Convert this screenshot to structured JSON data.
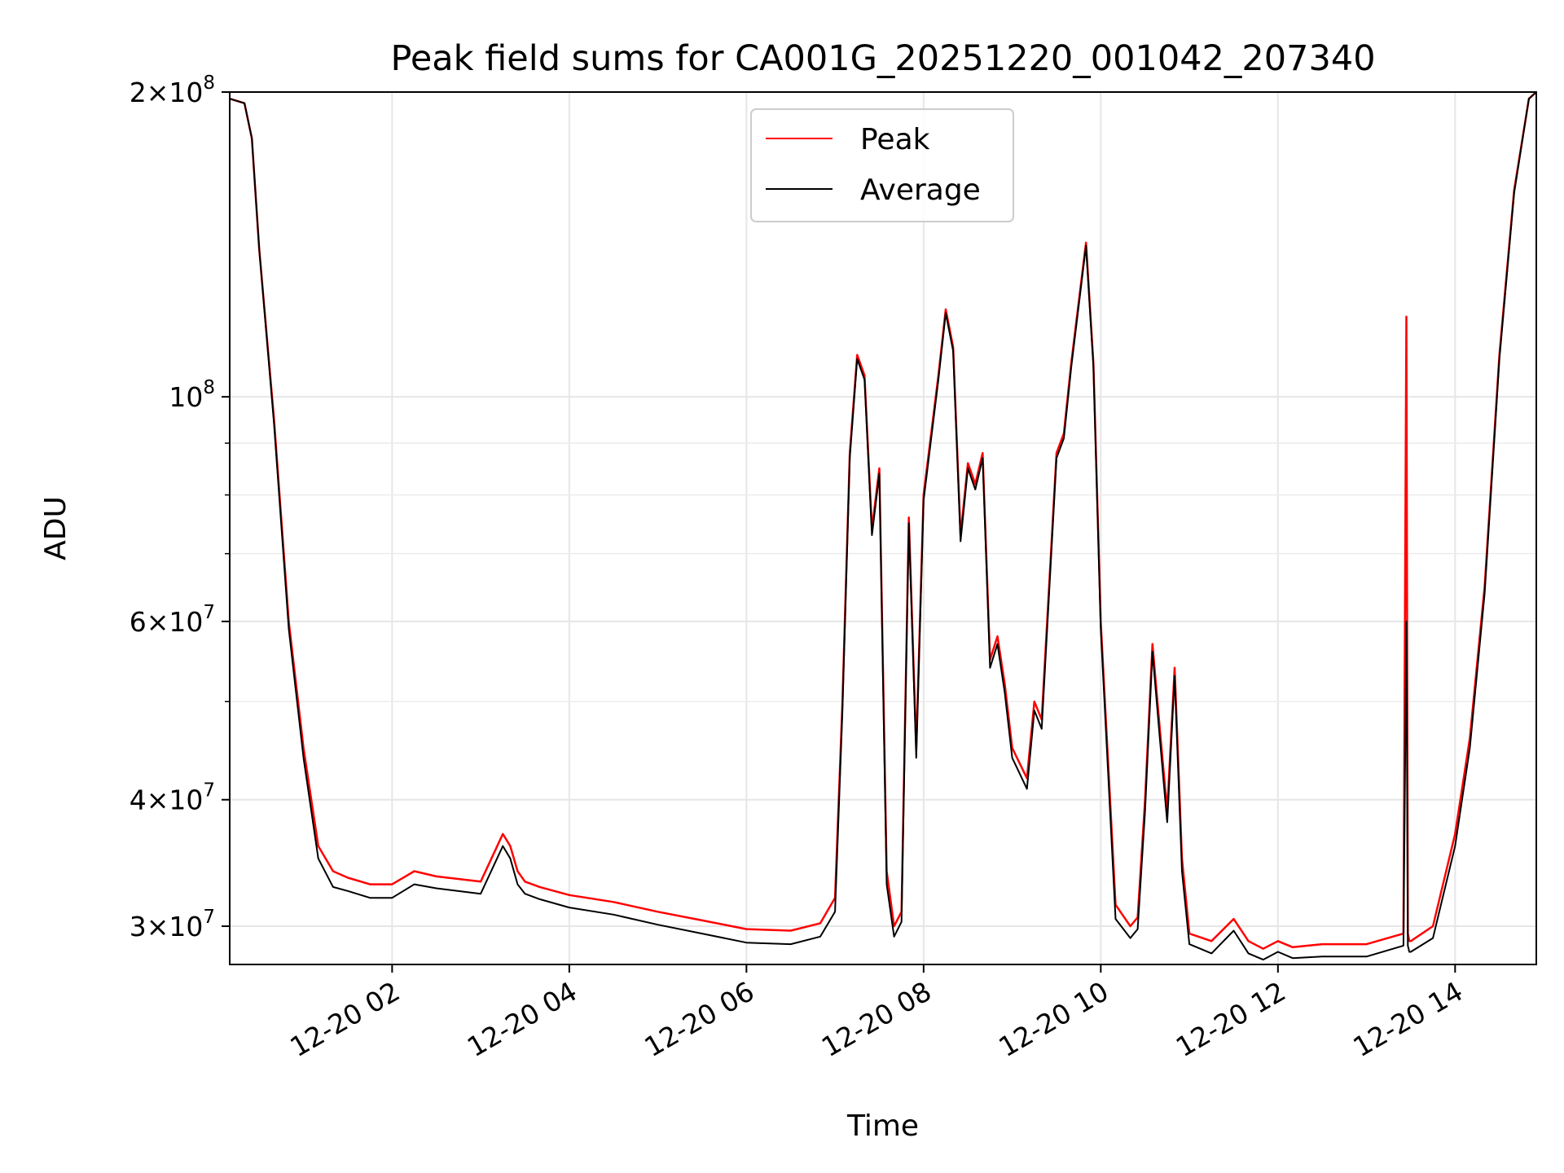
{
  "chart_data": {
    "type": "line",
    "title": "Peak field sums for CA001G_20251220_001042_207340",
    "xlabel": "Time",
    "ylabel": "ADU",
    "yscale": "log",
    "ylim": [
      27500000,
      200000000
    ],
    "xlim": [
      "12-20 00:10",
      "12-20 14:55"
    ],
    "grid": true,
    "legend_position": "top-center",
    "x_ticks": [
      {
        "value": "12-20 02:00",
        "label": "12-20 02"
      },
      {
        "value": "12-20 04:00",
        "label": "12-20 04"
      },
      {
        "value": "12-20 06:00",
        "label": "12-20 06"
      },
      {
        "value": "12-20 08:00",
        "label": "12-20 08"
      },
      {
        "value": "12-20 10:00",
        "label": "12-20 10"
      },
      {
        "value": "12-20 12:00",
        "label": "12-20 12"
      },
      {
        "value": "12-20 14:00",
        "label": "12-20 14"
      }
    ],
    "y_ticks": [
      {
        "value": 30000000,
        "base": "3",
        "exp": "7"
      },
      {
        "value": 40000000,
        "base": "4",
        "exp": "7"
      },
      {
        "value": 60000000,
        "base": "6",
        "exp": "7"
      },
      {
        "value": 100000000,
        "base": "",
        "exp": "8"
      },
      {
        "value": 200000000,
        "base": "2",
        "exp": "8"
      }
    ],
    "y_minor_ticks": [
      50000000,
      70000000,
      80000000,
      90000000
    ],
    "series": [
      {
        "name": "Peak",
        "color": "#ff0000",
        "x": [
          "12-20 00:10",
          "12-20 00:15",
          "12-20 00:20",
          "12-20 00:25",
          "12-20 00:30",
          "12-20 00:40",
          "12-20 00:50",
          "12-20 01:00",
          "12-20 01:10",
          "12-20 01:20",
          "12-20 01:30",
          "12-20 01:45",
          "12-20 02:00",
          "12-20 02:15",
          "12-20 02:30",
          "12-20 03:00",
          "12-20 03:15",
          "12-20 03:20",
          "12-20 03:25",
          "12-20 03:30",
          "12-20 03:40",
          "12-20 04:00",
          "12-20 04:30",
          "12-20 05:00",
          "12-20 05:30",
          "12-20 06:00",
          "12-20 06:30",
          "12-20 06:50",
          "12-20 07:00",
          "12-20 07:05",
          "12-20 07:10",
          "12-20 07:15",
          "12-20 07:20",
          "12-20 07:25",
          "12-20 07:30",
          "12-20 07:35",
          "12-20 07:40",
          "12-20 07:45",
          "12-20 07:50",
          "12-20 07:55",
          "12-20 08:00",
          "12-20 08:10",
          "12-20 08:15",
          "12-20 08:20",
          "12-20 08:25",
          "12-20 08:30",
          "12-20 08:35",
          "12-20 08:40",
          "12-20 08:45",
          "12-20 08:50",
          "12-20 08:55",
          "12-20 09:00",
          "12-20 09:10",
          "12-20 09:15",
          "12-20 09:20",
          "12-20 09:30",
          "12-20 09:35",
          "12-20 09:40",
          "12-20 09:50",
          "12-20 09:55",
          "12-20 10:00",
          "12-20 10:10",
          "12-20 10:20",
          "12-20 10:25",
          "12-20 10:30",
          "12-20 10:35",
          "12-20 10:40",
          "12-20 10:45",
          "12-20 10:50",
          "12-20 10:55",
          "12-20 11:00",
          "12-20 11:15",
          "12-20 11:30",
          "12-20 11:40",
          "12-20 11:50",
          "12-20 12:00",
          "12-20 12:10",
          "12-20 12:30",
          "12-20 13:00",
          "12-20 13:25",
          "12-20 13:27",
          "12-20 13:28",
          "12-20 13:29",
          "12-20 13:30",
          "12-20 13:45",
          "12-20 14:00",
          "12-20 14:10",
          "12-20 14:20",
          "12-20 14:30",
          "12-20 14:40",
          "12-20 14:50",
          "12-20 14:55"
        ],
        "y": [
          197000000,
          196000000,
          195000000,
          180000000,
          140000000,
          95000000,
          60000000,
          45000000,
          36000000,
          34000000,
          33500000,
          33000000,
          33000000,
          34000000,
          33600000,
          33200000,
          37000000,
          36000000,
          34000000,
          33200000,
          32800000,
          32200000,
          31700000,
          31000000,
          30400000,
          29800000,
          29700000,
          30200000,
          32000000,
          50000000,
          88000000,
          110000000,
          105000000,
          74000000,
          85000000,
          34000000,
          30000000,
          31000000,
          76000000,
          45000000,
          80000000,
          105000000,
          122000000,
          112000000,
          73000000,
          86000000,
          82000000,
          88000000,
          55000000,
          58000000,
          52000000,
          45000000,
          42000000,
          50000000,
          48000000,
          88000000,
          92000000,
          108000000,
          142000000,
          108000000,
          60000000,
          31500000,
          30000000,
          30600000,
          40000000,
          57000000,
          47000000,
          39000000,
          54000000,
          35000000,
          29500000,
          29000000,
          30500000,
          29000000,
          28500000,
          29000000,
          28600000,
          28800000,
          28800000,
          29500000,
          120000000,
          29500000,
          29000000,
          29000000,
          30000000,
          37000000,
          46000000,
          65000000,
          110000000,
          160000000,
          197000000,
          200000000
        ]
      },
      {
        "name": "Average",
        "color": "#000000",
        "x": [
          "12-20 00:10",
          "12-20 00:15",
          "12-20 00:20",
          "12-20 00:25",
          "12-20 00:30",
          "12-20 00:40",
          "12-20 00:50",
          "12-20 01:00",
          "12-20 01:10",
          "12-20 01:20",
          "12-20 01:30",
          "12-20 01:45",
          "12-20 02:00",
          "12-20 02:15",
          "12-20 02:30",
          "12-20 03:00",
          "12-20 03:15",
          "12-20 03:20",
          "12-20 03:25",
          "12-20 03:30",
          "12-20 03:40",
          "12-20 04:00",
          "12-20 04:30",
          "12-20 05:00",
          "12-20 05:30",
          "12-20 06:00",
          "12-20 06:30",
          "12-20 06:50",
          "12-20 07:00",
          "12-20 07:05",
          "12-20 07:10",
          "12-20 07:15",
          "12-20 07:20",
          "12-20 07:25",
          "12-20 07:30",
          "12-20 07:35",
          "12-20 07:40",
          "12-20 07:45",
          "12-20 07:50",
          "12-20 07:55",
          "12-20 08:00",
          "12-20 08:10",
          "12-20 08:15",
          "12-20 08:20",
          "12-20 08:25",
          "12-20 08:30",
          "12-20 08:35",
          "12-20 08:40",
          "12-20 08:45",
          "12-20 08:50",
          "12-20 08:55",
          "12-20 09:00",
          "12-20 09:10",
          "12-20 09:15",
          "12-20 09:20",
          "12-20 09:30",
          "12-20 09:35",
          "12-20 09:40",
          "12-20 09:50",
          "12-20 09:55",
          "12-20 10:00",
          "12-20 10:10",
          "12-20 10:20",
          "12-20 10:25",
          "12-20 10:30",
          "12-20 10:35",
          "12-20 10:40",
          "12-20 10:45",
          "12-20 10:50",
          "12-20 10:55",
          "12-20 11:00",
          "12-20 11:15",
          "12-20 11:30",
          "12-20 11:40",
          "12-20 11:50",
          "12-20 12:00",
          "12-20 12:10",
          "12-20 12:30",
          "12-20 13:00",
          "12-20 13:25",
          "12-20 13:27",
          "12-20 13:28",
          "12-20 13:29",
          "12-20 13:30",
          "12-20 13:45",
          "12-20 14:00",
          "12-20 14:10",
          "12-20 14:20",
          "12-20 14:30",
          "12-20 14:40",
          "12-20 14:50",
          "12-20 14:55"
        ],
        "y": [
          197000000,
          196000000,
          195000000,
          180000000,
          140000000,
          94000000,
          59000000,
          44000000,
          35000000,
          32800000,
          32500000,
          32000000,
          32000000,
          33000000,
          32700000,
          32300000,
          36000000,
          35000000,
          33000000,
          32300000,
          31900000,
          31300000,
          30800000,
          30100000,
          29500000,
          28900000,
          28800000,
          29300000,
          31000000,
          49000000,
          87000000,
          109000000,
          104000000,
          73000000,
          84000000,
          33000000,
          29300000,
          30300000,
          75000000,
          44000000,
          79000000,
          104000000,
          121000000,
          111000000,
          72000000,
          85000000,
          81000000,
          87000000,
          54000000,
          57000000,
          51000000,
          44000000,
          41000000,
          49000000,
          47000000,
          87000000,
          91000000,
          107000000,
          141000000,
          107000000,
          59000000,
          30500000,
          29200000,
          29800000,
          39000000,
          56000000,
          46000000,
          38000000,
          53000000,
          34000000,
          28800000,
          28200000,
          29700000,
          28200000,
          27800000,
          28300000,
          27900000,
          28000000,
          28000000,
          28700000,
          60000000,
          28700000,
          28300000,
          28300000,
          29200000,
          36000000,
          45000000,
          64000000,
          109000000,
          159000000,
          197000000,
          200000000
        ]
      }
    ]
  }
}
